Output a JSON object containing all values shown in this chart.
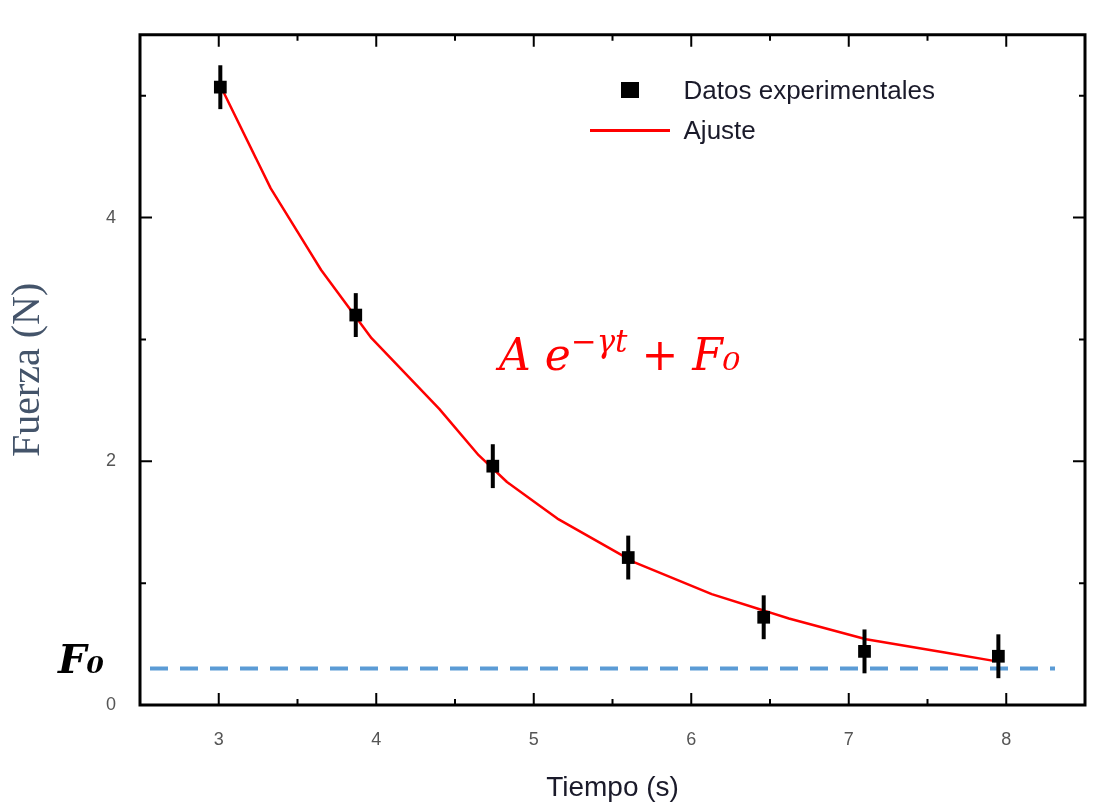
{
  "chart_data": {
    "type": "scatter",
    "xlabel": "Tiempo (s)",
    "ylabel": "Fuerza (N)",
    "xlim": [
      2.5,
      8.5
    ],
    "xticks": [
      3,
      {
        "value": 3.5,
        "label": null
      },
      4,
      {
        "value": 4.5,
        "label": null
      },
      5,
      {
        "value": 5.5,
        "label": null
      },
      6,
      {
        "value": 6.5,
        "label": null
      },
      7,
      {
        "value": 7.5,
        "label": null
      },
      8
    ],
    "ylim": [
      0,
      5.5
    ],
    "yticks": [
      0,
      {
        "value": 1,
        "label": null
      },
      2,
      {
        "value": 3,
        "label": null
      },
      4,
      {
        "value": 5,
        "label": null
      }
    ],
    "grid": false,
    "legend": "top right",
    "series": [
      {
        "name": "Datos experimentales",
        "marker": "square",
        "color": "#000000",
        "x": [
          3.01,
          3.87,
          4.74,
          5.6,
          6.46,
          7.1,
          7.95
        ],
        "values": [
          5.07,
          3.2,
          1.96,
          1.21,
          0.72,
          0.44,
          0.4
        ],
        "errors": [
          0.18,
          0.18,
          0.18,
          0.18,
          0.18,
          0.18,
          0.18
        ]
      },
      {
        "name": "Ajuste",
        "type": "line",
        "marker": "none",
        "color": "#ff0000",
        "x": [
          3.03,
          3.33,
          3.65,
          3.97,
          4.4,
          4.65,
          4.83,
          5.15,
          5.64,
          6.13,
          6.62,
          7.11,
          7.61,
          7.93
        ],
        "values": [
          5.03,
          4.24,
          3.57,
          3.01,
          2.43,
          2.05,
          1.83,
          1.53,
          1.17,
          0.91,
          0.71,
          0.54,
          0.43,
          0.36
        ]
      }
    ],
    "ref_lines": [
      {
        "axis": "y",
        "value": 0.3,
        "label": "F₀",
        "color": "#5b9bd5",
        "line_style": "dashed"
      }
    ],
    "annotations": [
      "A e$^{−γt}$ + F₀"
    ]
  }
}
